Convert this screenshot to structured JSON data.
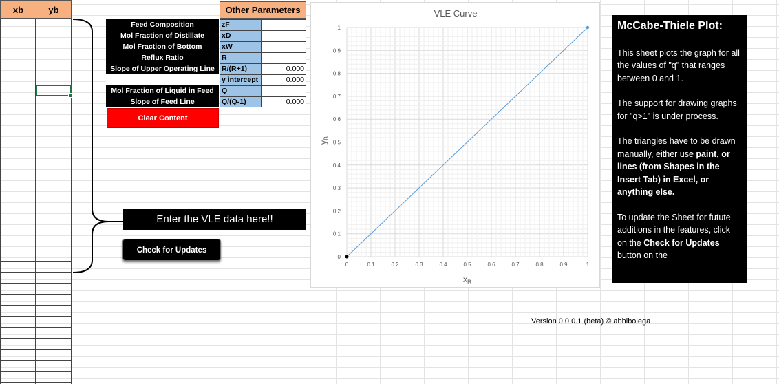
{
  "sheet": {
    "col_xb": "xb",
    "col_yb": "yb"
  },
  "params": {
    "header": "Other Parameters",
    "rows": [
      {
        "label": "Feed Composition",
        "symbol": "zF",
        "value": ""
      },
      {
        "label": "Mol Fraction of Distillate",
        "symbol": "xD",
        "value": ""
      },
      {
        "label": "Mol Fraction of Bottom",
        "symbol": "xW",
        "value": ""
      },
      {
        "label": "Reflux Ratio",
        "symbol": "R",
        "value": ""
      },
      {
        "label": "Slope of Upper Operating Line",
        "symbol": "R/(R+1)",
        "value": "0.000"
      },
      {
        "label": "",
        "symbol": "y intercept",
        "value": "0.000"
      },
      {
        "label": "Mol Fraction of Liquid in Feed",
        "symbol": "Q",
        "value": ""
      },
      {
        "label": "Slope of Feed Line",
        "symbol": "Q/(Q-1)",
        "value": "0.000"
      }
    ],
    "clear_button": "Clear Content"
  },
  "banner": {
    "enter_text": "Enter the VLE data here!!",
    "check_updates": "Check for Updates"
  },
  "chart_data": {
    "type": "scatter",
    "title": "VLE Curve",
    "xlabel": "xB",
    "ylabel": "yB",
    "xlim": [
      0,
      1
    ],
    "ylim": [
      0,
      1
    ],
    "xticks": [
      "0",
      "0.1",
      "0.2",
      "0.3",
      "0.4",
      "0.5",
      "0.6",
      "0.7",
      "0.8",
      "0.9",
      "1"
    ],
    "yticks": [
      "0",
      "0.1",
      "0.2",
      "0.3",
      "0.4",
      "0.5",
      "0.6",
      "0.7",
      "0.8",
      "0.9",
      "1"
    ],
    "grid": true,
    "series": [
      {
        "x": [
          0,
          1
        ],
        "y": [
          0,
          1
        ],
        "color": "#5b9bd5"
      }
    ],
    "origin_point": {
      "x": 0,
      "y": 0
    }
  },
  "info": {
    "title": "McCabe-Thiele Plot:",
    "p1": "This sheet plots the graph for all the values of \"q\" that ranges between 0 and 1.",
    "p2": "The support for drawing graphs for \"q>1\" is under process.",
    "p3_plain": "The triangles have to be drawn manually, either use ",
    "p3_bold": "paint, or lines (from Shapes in the Insert Tab) in Excel, or anything else.",
    "p4_plain": "To update the Sheet for futute additions in the features, click on the ",
    "p4_bold": "Check for Updates",
    "p4_tail": " button on the"
  },
  "footer": {
    "version": "Version 0.0.0.1 (beta) © abhibolega"
  },
  "colors": {
    "header_orange": "#f7b07f",
    "symbol_blue": "#9dc3e6",
    "clear_red": "#ff0000",
    "line_blue": "#5b9bd5"
  }
}
